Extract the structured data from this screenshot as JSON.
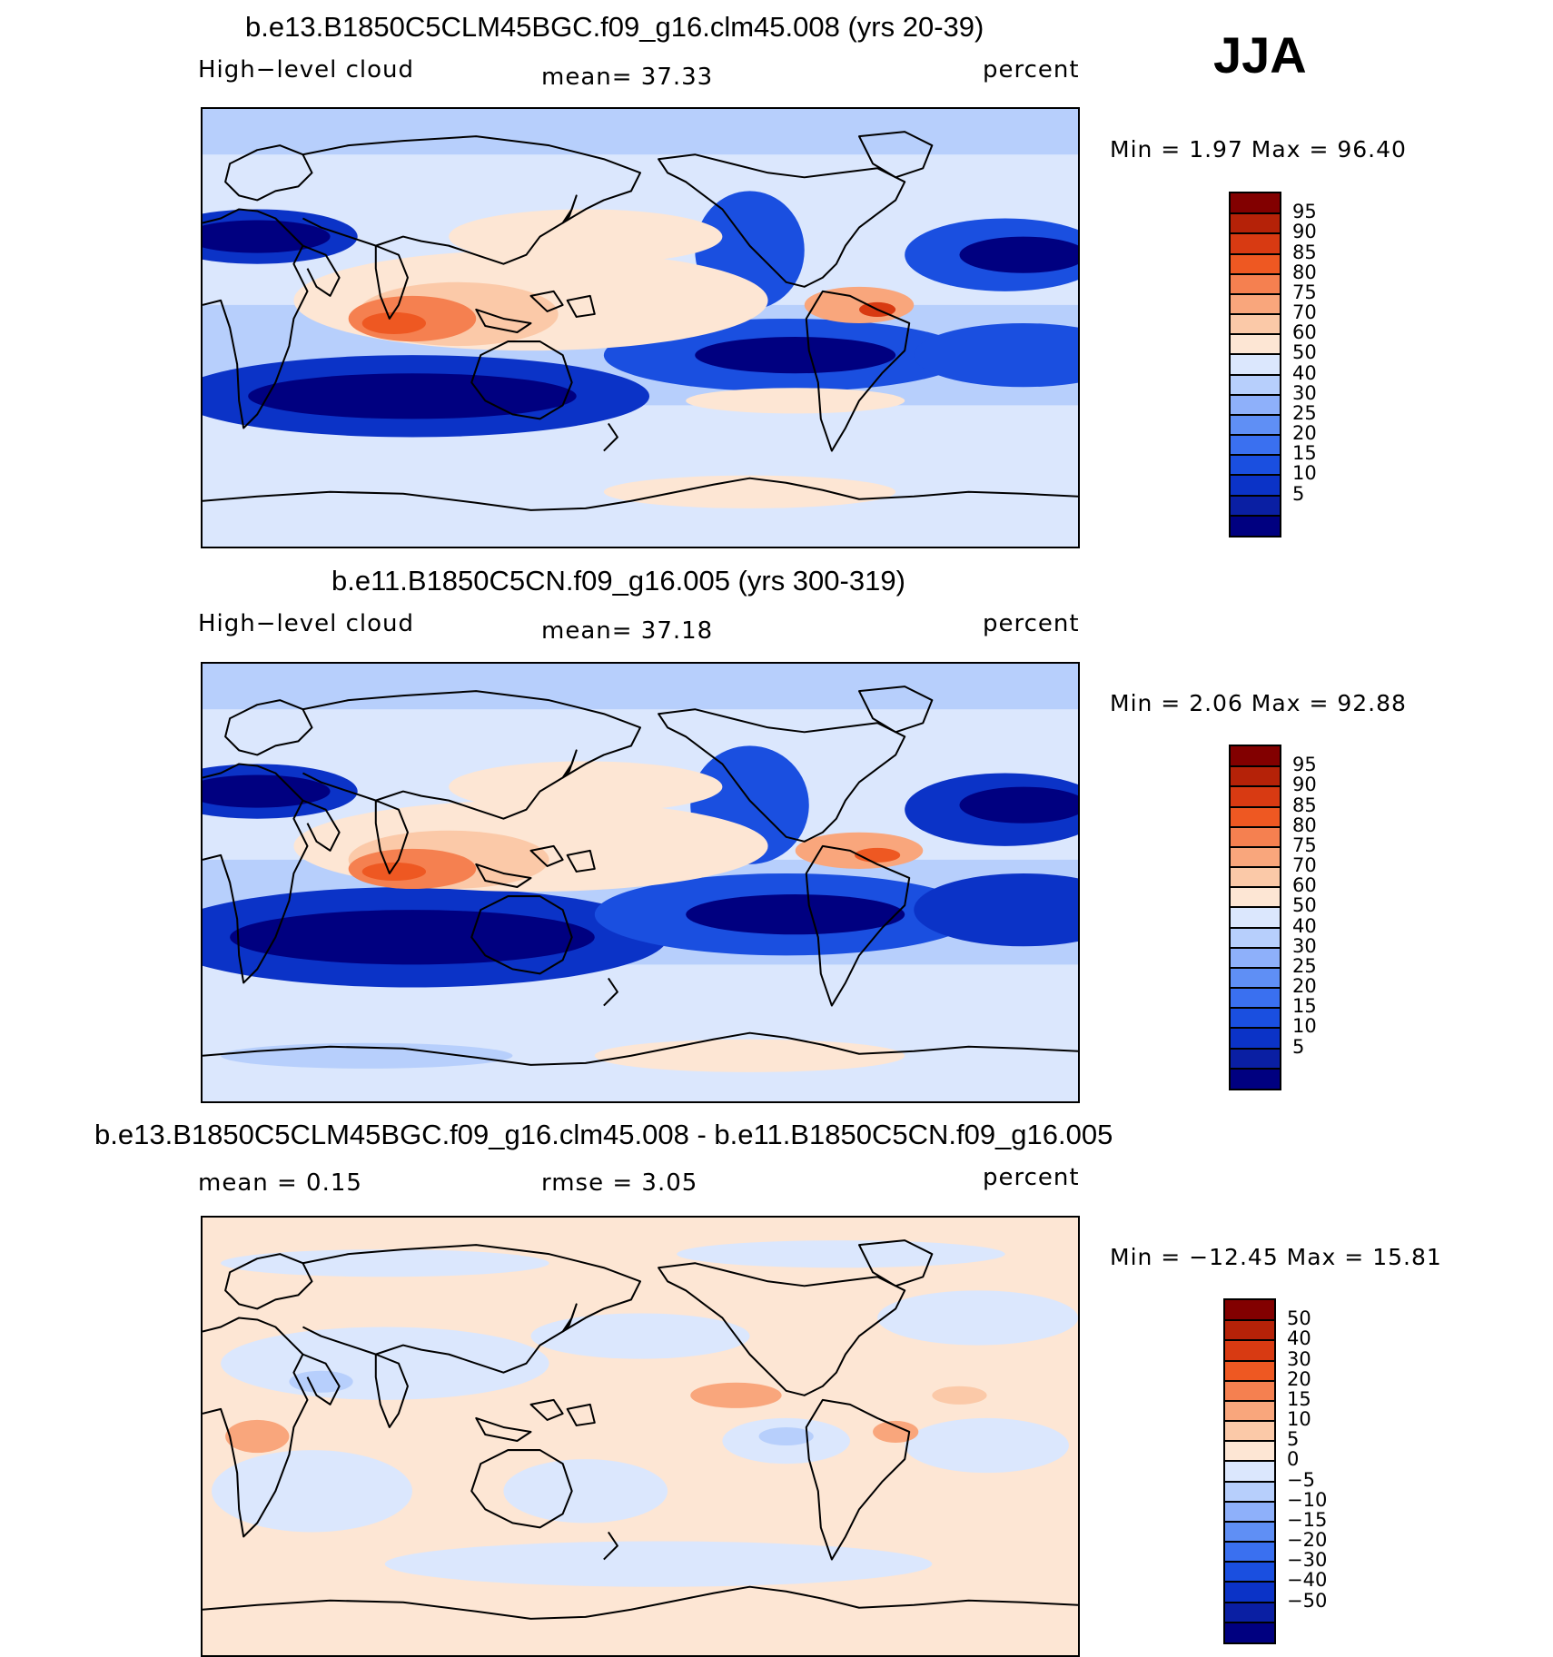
{
  "season": "JJA",
  "colors": {
    "abs_scale": [
      "#000080",
      "#0a1fa3",
      "#0b33c7",
      "#1a4fe0",
      "#3a70f0",
      "#5f8ff5",
      "#8eb0fa",
      "#b7cffc",
      "#dbe7fd",
      "#fde6d4",
      "#fbc9a8",
      "#f9a67c",
      "#f58050",
      "#ee5822",
      "#d83a12",
      "#b52208",
      "#820000"
    ],
    "diff_scale": [
      "#000080",
      "#0a1fa3",
      "#0b33c7",
      "#1a4fe0",
      "#3a70f0",
      "#5f8ff5",
      "#8eb0fa",
      "#b7cffc",
      "#dbe7fd",
      "#fde6d4",
      "#fbc9a8",
      "#f9a67c",
      "#f58050",
      "#ee5822",
      "#d83a12",
      "#b52208",
      "#820000"
    ]
  },
  "panels": [
    {
      "title": "b.e13.B1850C5CLM45BGC.f09_g16.clm45.008 (yrs 20-39)",
      "left_label": "High−level cloud",
      "center_label": "mean=   37.33",
      "right_label": "percent",
      "minmax": "Min  =     1.97  Max  =    96.40",
      "palette": "abs_scale",
      "levels": [
        "95",
        "90",
        "85",
        "80",
        "75",
        "70",
        "60",
        "50",
        "40",
        "30",
        "25",
        "20",
        "15",
        "10",
        "5"
      ]
    },
    {
      "title": "b.e11.B1850C5CN.f09_g16.005 (yrs 300-319)",
      "left_label": "High−level cloud",
      "center_label": "mean=   37.18",
      "right_label": "percent",
      "minmax": "Min  =     2.06  Max  =    92.88",
      "palette": "abs_scale",
      "levels": [
        "95",
        "90",
        "85",
        "80",
        "75",
        "70",
        "60",
        "50",
        "40",
        "30",
        "25",
        "20",
        "15",
        "10",
        "5"
      ]
    },
    {
      "title": "b.e13.B1850C5CLM45BGC.f09_g16.clm45.008 - b.e11.B1850C5CN.f09_g16.005",
      "left_label": "mean  =     0.15",
      "center_label": "rmse  =     3.05",
      "right_label": "percent",
      "minmax": "Min  =  −12.45  Max  =    15.81",
      "palette": "diff_scale",
      "levels": [
        "50",
        "40",
        "30",
        "20",
        "15",
        "10",
        "5",
        "0",
        "−5",
        "−10",
        "−15",
        "−20",
        "−30",
        "−40",
        "−50"
      ]
    }
  ],
  "chart_data": [
    {
      "type": "heatmap",
      "title": "b.e13.B1850C5CLM45BGC.f09_g16.clm45.008 (yrs 20-39)",
      "variable": "High−level cloud",
      "units": "percent",
      "season": "JJA",
      "mean": 37.33,
      "min": 1.97,
      "max": 96.4,
      "contour_levels": [
        5,
        10,
        15,
        20,
        25,
        30,
        40,
        50,
        60,
        70,
        75,
        80,
        85,
        90,
        95
      ]
    },
    {
      "type": "heatmap",
      "title": "b.e11.B1850C5CN.f09_g16.005 (yrs 300-319)",
      "variable": "High−level cloud",
      "units": "percent",
      "season": "JJA",
      "mean": 37.18,
      "min": 2.06,
      "max": 92.88,
      "contour_levels": [
        5,
        10,
        15,
        20,
        25,
        30,
        40,
        50,
        60,
        70,
        75,
        80,
        85,
        90,
        95
      ]
    },
    {
      "type": "heatmap",
      "title": "b.e13.B1850C5CLM45BGC.f09_g16.clm45.008 - b.e11.B1850C5CN.f09_g16.005",
      "units": "percent",
      "season": "JJA",
      "mean": 0.15,
      "rmse": 3.05,
      "min": -12.45,
      "max": 15.81,
      "contour_levels": [
        -50,
        -40,
        -30,
        -20,
        -15,
        -10,
        -5,
        0,
        5,
        10,
        15,
        20,
        30,
        40,
        50
      ]
    }
  ]
}
